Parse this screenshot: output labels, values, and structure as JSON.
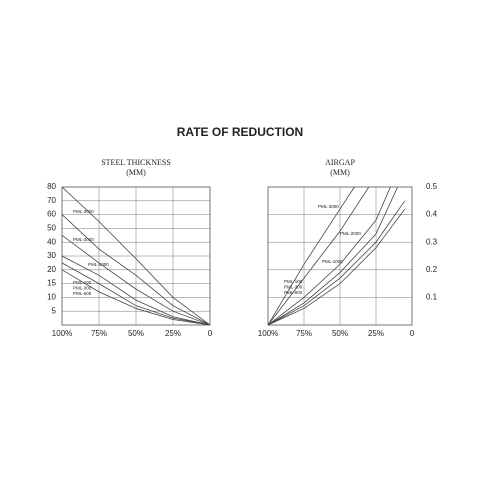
{
  "title": "RATE OF REDUCTION",
  "chart_data": [
    {
      "type": "line",
      "title": "STEEL THICKNESS",
      "subtitle": "(MM)",
      "yscale": "tick-spaced",
      "yaxis_side": "left",
      "grid": true,
      "color": "#444",
      "xlim": [
        100,
        0
      ],
      "xticks": [
        {
          "value": 100,
          "label": "100%"
        },
        {
          "value": 75,
          "label": "75%"
        },
        {
          "value": 50,
          "label": "50%"
        },
        {
          "value": 25,
          "label": "25%"
        },
        0
      ],
      "ylim": [
        0,
        80
      ],
      "yticks": [
        5,
        10,
        15,
        20,
        30,
        40,
        50,
        60,
        70,
        80
      ],
      "series": [
        {
          "name": "PML-3000",
          "x": [
            100,
            75,
            50,
            25,
            0
          ],
          "values": [
            80,
            55,
            28,
            10,
            0
          ]
        },
        {
          "name": "PML-2000",
          "x": [
            100,
            75,
            50,
            25,
            0
          ],
          "values": [
            60,
            35,
            18,
            7,
            0
          ]
        },
        {
          "name": "PML-1000",
          "x": [
            100,
            75,
            50,
            25,
            0
          ],
          "values": [
            45,
            25,
            13,
            5,
            0
          ]
        },
        {
          "name": "PML-100",
          "x": [
            100,
            75,
            50,
            25,
            0
          ],
          "values": [
            20,
            12,
            6,
            2,
            0
          ]
        },
        {
          "name": "PML-300",
          "x": [
            100,
            75,
            50,
            25,
            0
          ],
          "values": [
            25,
            15,
            7,
            2.5,
            0
          ]
        },
        {
          "name": "PML-600",
          "x": [
            100,
            75,
            50,
            25,
            0
          ],
          "values": [
            30,
            18,
            9,
            3,
            0
          ]
        }
      ]
    },
    {
      "type": "line",
      "title": "AIRGAP",
      "subtitle": "(MM)",
      "yscale": "linear",
      "yaxis_side": "right",
      "grid": true,
      "color": "#444",
      "xlim": [
        100,
        0
      ],
      "xticks": [
        {
          "value": 100,
          "label": "100%"
        },
        {
          "value": 75,
          "label": "75%"
        },
        {
          "value": 50,
          "label": "50%"
        },
        {
          "value": 25,
          "label": "25%"
        },
        0
      ],
      "ylim": [
        0,
        0.5
      ],
      "yticks": [
        0.1,
        0.2,
        0.3,
        0.4,
        0.5
      ],
      "series": [
        {
          "name": "PML-3000",
          "x": [
            100,
            75,
            50,
            40
          ],
          "values": [
            0,
            0.22,
            0.42,
            0.5
          ]
        },
        {
          "name": "PML-2000",
          "x": [
            100,
            75,
            50,
            30
          ],
          "values": [
            0,
            0.17,
            0.34,
            0.5
          ]
        },
        {
          "name": "PML-1000",
          "x": [
            100,
            75,
            50,
            25,
            15
          ],
          "values": [
            0,
            0.1,
            0.22,
            0.38,
            0.5
          ]
        },
        {
          "name": "PML-100",
          "x": [
            100,
            75,
            50,
            25,
            5
          ],
          "values": [
            0,
            0.06,
            0.15,
            0.28,
            0.42
          ]
        },
        {
          "name": "PML-300",
          "x": [
            100,
            75,
            50,
            25,
            5
          ],
          "values": [
            0,
            0.07,
            0.17,
            0.3,
            0.45
          ]
        },
        {
          "name": "PML-600",
          "x": [
            100,
            75,
            50,
            25,
            10
          ],
          "values": [
            0,
            0.08,
            0.19,
            0.33,
            0.5
          ]
        }
      ]
    }
  ]
}
